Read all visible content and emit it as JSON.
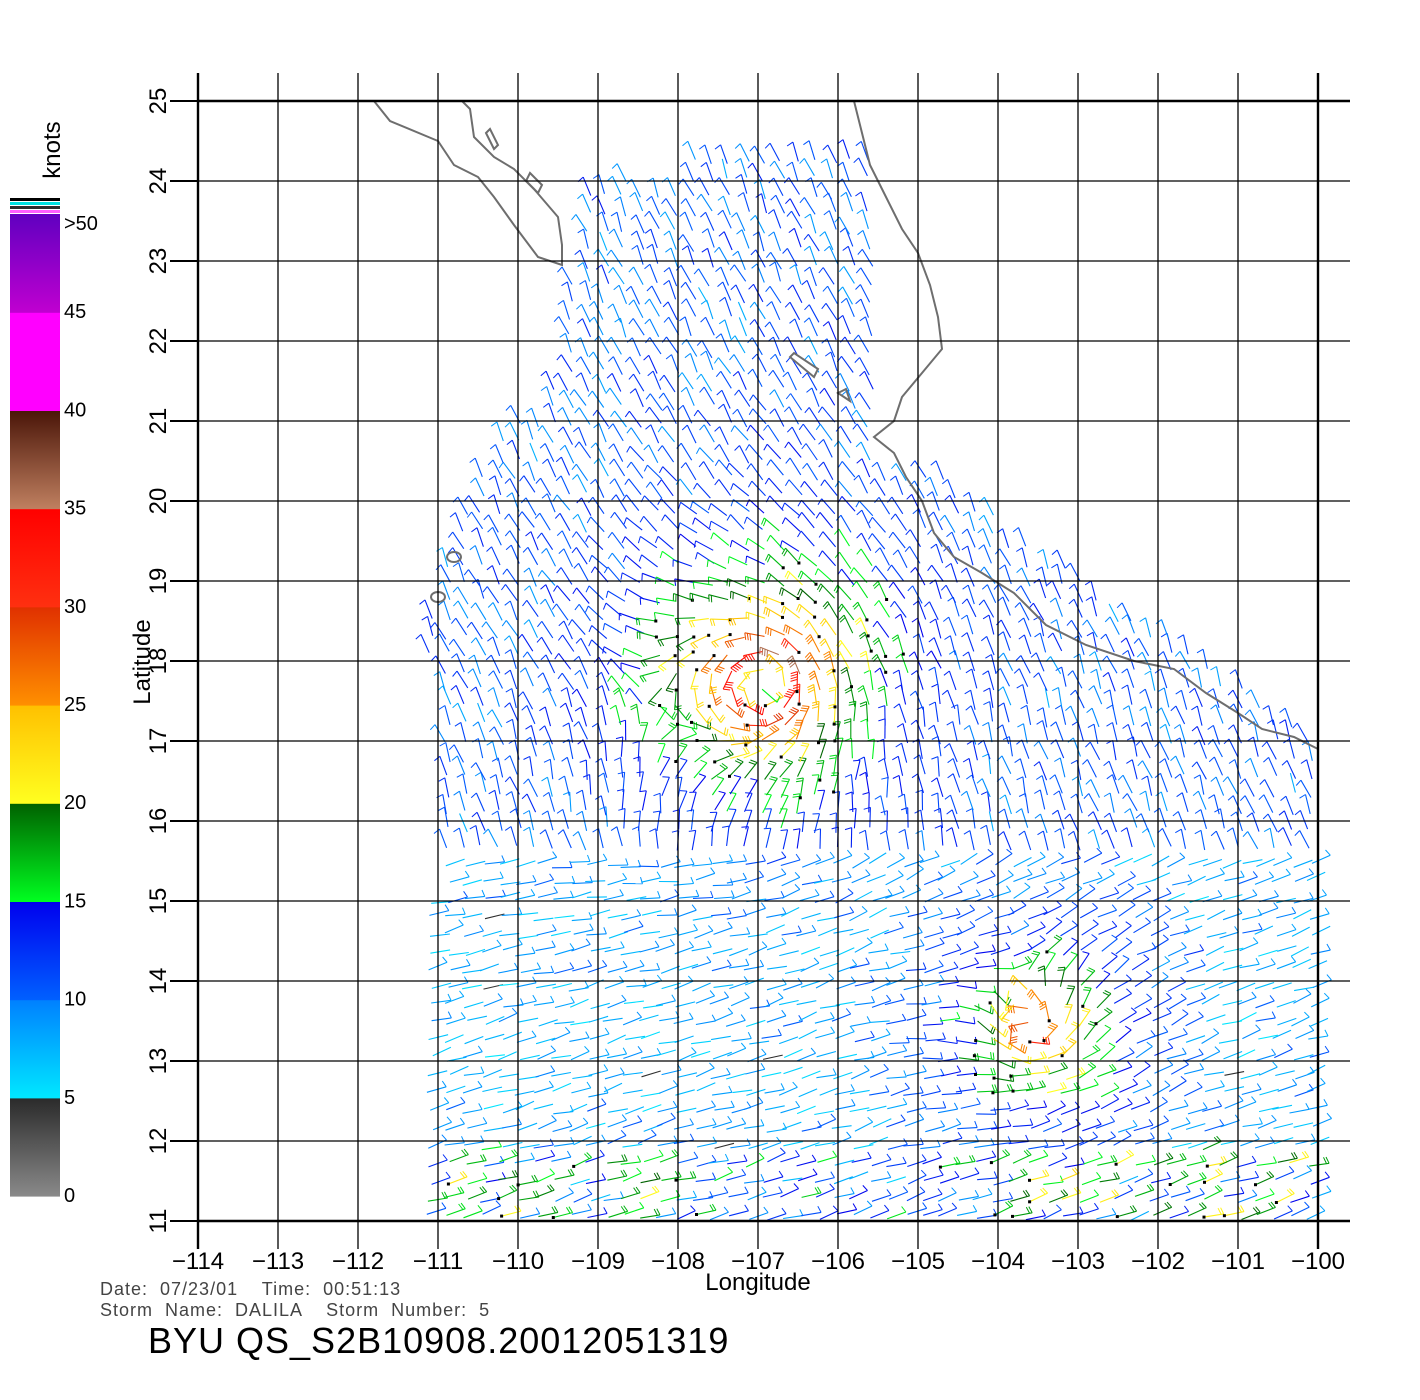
{
  "map": {
    "x_axis": {
      "title": "Longitude",
      "ticks": [
        "−114",
        "−113",
        "−112",
        "−111",
        "−110",
        "−109",
        "−108",
        "−107",
        "−106",
        "−105",
        "−104",
        "−103",
        "−102",
        "−101",
        "−100"
      ],
      "range": [
        -114,
        -100
      ]
    },
    "y_axis": {
      "title": "Latitude",
      "ticks": [
        "11",
        "12",
        "13",
        "14",
        "15",
        "16",
        "17",
        "18",
        "19",
        "20",
        "21",
        "22",
        "23",
        "24",
        "25"
      ],
      "range": [
        11,
        25
      ]
    },
    "grid": true,
    "storm_center": {
      "lon": -106.9,
      "lat": 17.7
    },
    "secondary_center": {
      "lon": -103.6,
      "lat": 13.4
    },
    "coastline_color": "#6e6e6e",
    "islands": [
      {
        "name": "revillagigedo-east",
        "lon": -110.8,
        "lat": 19.3
      },
      {
        "name": "revillagigedo-west",
        "lon": -111.0,
        "lat": 18.8
      }
    ]
  },
  "colorbar": {
    "unit": "knots",
    "labels": [
      ">50",
      "45",
      "40",
      "35",
      "30",
      "25",
      "20",
      "15",
      "10",
      "5",
      "0"
    ],
    "bands": [
      {
        "from": 0,
        "to": 5,
        "top": "#2a2a2a",
        "bottom": "#8a8a8a"
      },
      {
        "from": 5,
        "to": 10,
        "top": "#0080ff",
        "bottom": "#00e8ff"
      },
      {
        "from": 10,
        "to": 15,
        "top": "#0000ee",
        "bottom": "#0060ff"
      },
      {
        "from": 15,
        "to": 20,
        "top": "#006000",
        "bottom": "#00ff20"
      },
      {
        "from": 20,
        "to": 25,
        "top": "#ffc000",
        "bottom": "#ffff20"
      },
      {
        "from": 25,
        "to": 30,
        "top": "#e03000",
        "bottom": "#ff9000"
      },
      {
        "from": 30,
        "to": 35,
        "top": "#ff0000",
        "bottom": "#ff3010"
      },
      {
        "from": 35,
        "to": 40,
        "top": "#4a1508",
        "bottom": "#c08060"
      },
      {
        "from": 40,
        "to": 45,
        "top": "#ff00ff",
        "bottom": "#ff00ff"
      },
      {
        "from": 45,
        "to": 50,
        "top": "#6000c0",
        "bottom": "#c000d0"
      }
    ]
  },
  "footer": {
    "date_line": "Date:  07/23/01    Time:  00:51:13",
    "storm_line": "Storm  Name:  DALILA    Storm  Number:  5",
    "product": "BYU  QS_S2B10908.20012051319"
  }
}
